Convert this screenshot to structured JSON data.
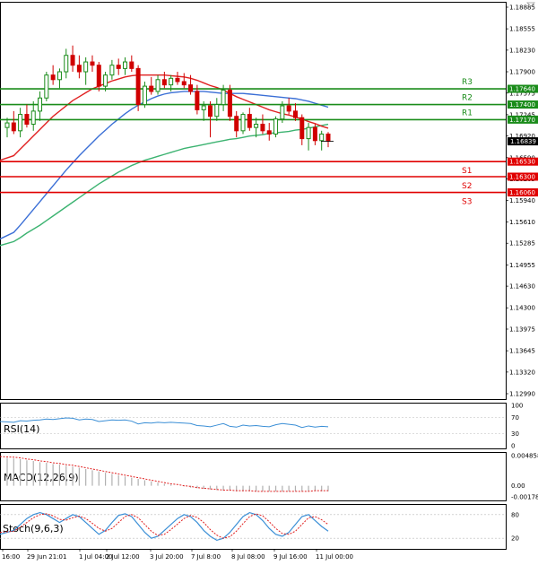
{
  "chart_data": {
    "type": "candlestick",
    "x_labels": [
      "16:00",
      "29 Jun 21:01",
      "1 Jul 04:00",
      "2 Jul 12:00",
      "3 Jul 20:00",
      "7 Jul 8:00",
      "8 Jul 08:00",
      "9 Jul 16:00",
      "11 Jul 00:00"
    ],
    "price_ticks": [
      "1.18885",
      "1.18555",
      "1.18230",
      "1.17900",
      "1.17575",
      "1.17245",
      "1.16920",
      "1.16590",
      "1.16265",
      "1.15940",
      "1.15610",
      "1.15285",
      "1.14955",
      "1.14630",
      "1.14300",
      "1.13975",
      "1.13645",
      "1.13320",
      "1.12990"
    ],
    "ylim": [
      1.1299,
      1.18885
    ],
    "current_price": "1.16839",
    "levels": [
      {
        "name": "R3",
        "value": 1.1764,
        "label": "1.17640",
        "color": "#1a8c1a"
      },
      {
        "name": "R2",
        "value": 1.174,
        "label": "1.17400",
        "color": "#1a8c1a"
      },
      {
        "name": "R1",
        "value": 1.1717,
        "label": "1.17170",
        "color": "#1a8c1a"
      },
      {
        "name": "S1",
        "value": 1.1653,
        "label": "1.16530",
        "color": "#e00000"
      },
      {
        "name": "S2",
        "value": 1.163,
        "label": "1.16300",
        "color": "#e00000"
      },
      {
        "name": "S3",
        "value": 1.1606,
        "label": "1.16060",
        "color": "#e00000"
      }
    ],
    "candles": [
      [
        1.1705,
        1.172,
        1.169,
        1.1712
      ],
      [
        1.1712,
        1.173,
        1.1695,
        1.17
      ],
      [
        1.17,
        1.1735,
        1.169,
        1.1725
      ],
      [
        1.1725,
        1.174,
        1.1705,
        1.171
      ],
      [
        1.171,
        1.1745,
        1.17,
        1.173
      ],
      [
        1.173,
        1.176,
        1.1715,
        1.175
      ],
      [
        1.175,
        1.179,
        1.1745,
        1.1785
      ],
      [
        1.1785,
        1.18,
        1.177,
        1.1778
      ],
      [
        1.1778,
        1.1795,
        1.1765,
        1.179
      ],
      [
        1.179,
        1.1825,
        1.178,
        1.1815
      ],
      [
        1.1815,
        1.183,
        1.179,
        1.18
      ],
      [
        1.18,
        1.1815,
        1.178,
        1.179
      ],
      [
        1.179,
        1.1812,
        1.177,
        1.1805
      ],
      [
        1.1805,
        1.1815,
        1.179,
        1.18
      ],
      [
        1.18,
        1.1805,
        1.176,
        1.1768
      ],
      [
        1.1768,
        1.179,
        1.176,
        1.1785
      ],
      [
        1.1785,
        1.1808,
        1.1778,
        1.18
      ],
      [
        1.18,
        1.181,
        1.1785,
        1.1795
      ],
      [
        1.1795,
        1.1812,
        1.1785,
        1.1805
      ],
      [
        1.1805,
        1.1815,
        1.179,
        1.1795
      ],
      [
        1.1795,
        1.18,
        1.173,
        1.174
      ],
      [
        1.174,
        1.1775,
        1.1735,
        1.1768
      ],
      [
        1.1768,
        1.1782,
        1.1755,
        1.176
      ],
      [
        1.176,
        1.1785,
        1.1755,
        1.1778
      ],
      [
        1.1778,
        1.179,
        1.1765,
        1.177
      ],
      [
        1.177,
        1.1785,
        1.176,
        1.178
      ],
      [
        1.178,
        1.179,
        1.177,
        1.1775
      ],
      [
        1.1775,
        1.1788,
        1.1765,
        1.177
      ],
      [
        1.177,
        1.1785,
        1.1755,
        1.176
      ],
      [
        1.176,
        1.177,
        1.1725,
        1.1732
      ],
      [
        1.1732,
        1.1745,
        1.1715,
        1.1738
      ],
      [
        1.1738,
        1.1745,
        1.169,
        1.1722
      ],
      [
        1.1722,
        1.175,
        1.1715,
        1.174
      ],
      [
        1.174,
        1.177,
        1.173,
        1.1762
      ],
      [
        1.1762,
        1.177,
        1.1715,
        1.1722
      ],
      [
        1.1722,
        1.173,
        1.169,
        1.17
      ],
      [
        1.17,
        1.1728,
        1.1695,
        1.1725
      ],
      [
        1.1725,
        1.1735,
        1.17,
        1.1705
      ],
      [
        1.1705,
        1.172,
        1.169,
        1.171
      ],
      [
        1.171,
        1.1725,
        1.1695,
        1.17
      ],
      [
        1.17,
        1.1712,
        1.1685,
        1.1695
      ],
      [
        1.1695,
        1.1722,
        1.169,
        1.1718
      ],
      [
        1.1718,
        1.1745,
        1.1712,
        1.1738
      ],
      [
        1.1738,
        1.175,
        1.1725,
        1.173
      ],
      [
        1.173,
        1.1742,
        1.1715,
        1.172
      ],
      [
        1.172,
        1.1725,
        1.1678,
        1.1688
      ],
      [
        1.1688,
        1.1712,
        1.167,
        1.1705
      ],
      [
        1.1705,
        1.171,
        1.1678,
        1.1685
      ],
      [
        1.1685,
        1.17,
        1.167,
        1.1695
      ],
      [
        1.1695,
        1.1698,
        1.1675,
        1.1684
      ]
    ],
    "ma_red": [
      1.1655,
      1.1662,
      1.1672,
      1.1682,
      1.1692,
      1.1702,
      1.1712,
      1.1722,
      1.173,
      1.1738,
      1.1746,
      1.1752,
      1.1758,
      1.1764,
      1.1768,
      1.1772,
      1.1776,
      1.1779,
      1.1782,
      1.1784,
      1.1785,
      1.1785,
      1.1785,
      1.1785,
      1.1785,
      1.1784,
      1.1783,
      1.1782,
      1.178,
      1.1777,
      1.1773,
      1.1769,
      1.1766,
      1.1762,
      1.1757,
      1.1752,
      1.1748,
      1.1744,
      1.174,
      1.1736,
      1.1732,
      1.1729,
      1.1726,
      1.1724,
      1.1721,
      1.1718,
      1.1714,
      1.1711,
      1.1707,
      1.1704
    ],
    "ma_blue": [
      1.1535,
      1.1545,
      1.1556,
      1.1568,
      1.158,
      1.1592,
      1.1604,
      1.1616,
      1.1628,
      1.164,
      1.1651,
      1.1662,
      1.1672,
      1.1682,
      1.1692,
      1.1701,
      1.171,
      1.1718,
      1.1726,
      1.1733,
      1.1739,
      1.1744,
      1.1749,
      1.1753,
      1.1756,
      1.1758,
      1.1759,
      1.176,
      1.176,
      1.176,
      1.176,
      1.1759,
      1.1758,
      1.1757,
      1.1757,
      1.1757,
      1.1757,
      1.1756,
      1.1755,
      1.1754,
      1.1753,
      1.1752,
      1.1751,
      1.175,
      1.1749,
      1.1747,
      1.1745,
      1.1742,
      1.1739,
      1.1736
    ],
    "ma_green": [
      1.1525,
      1.1531,
      1.1537,
      1.1544,
      1.155,
      1.1556,
      1.1563,
      1.157,
      1.1577,
      1.1584,
      1.1591,
      1.1598,
      1.1605,
      1.1612,
      1.1619,
      1.1625,
      1.1631,
      1.1637,
      1.1642,
      1.1647,
      1.1651,
      1.1655,
      1.1658,
      1.1661,
      1.1664,
      1.1667,
      1.167,
      1.1673,
      1.1675,
      1.1677,
      1.1679,
      1.1681,
      1.1683,
      1.1685,
      1.1687,
      1.1688,
      1.169,
      1.1692,
      1.1693,
      1.1694,
      1.1696,
      1.1697,
      1.1698,
      1.1699,
      1.1701,
      1.1702,
      1.1704,
      1.1706,
      1.1708,
      1.171
    ],
    "rsi": {
      "name": "RSI(14)",
      "ticks": [
        "100",
        "70",
        "30",
        "0"
      ],
      "values": [
        60,
        58,
        62,
        61,
        63,
        64,
        66,
        65,
        67,
        69,
        68,
        64,
        66,
        65,
        60,
        62,
        64,
        63,
        64,
        61,
        54,
        57,
        56,
        58,
        57,
        58,
        57,
        56,
        55,
        50,
        49,
        47,
        51,
        55,
        48,
        46,
        51,
        49,
        50,
        48,
        47,
        52,
        55,
        53,
        51,
        45,
        49,
        46,
        48,
        47
      ]
    },
    "macd": {
      "name": "MACD(12,26,9)",
      "ticks": [
        "0.004858",
        "0.00",
        "-0.001788"
      ],
      "hist": [
        0.0045,
        0.0044,
        0.0043,
        0.0041,
        0.004,
        0.0038,
        0.0037,
        0.0035,
        0.0034,
        0.0032,
        0.0031,
        0.0029,
        0.0027,
        0.0025,
        0.0023,
        0.0021,
        0.0019,
        0.0017,
        0.0015,
        0.0013,
        0.0011,
        0.0009,
        0.0007,
        0.0005,
        0.0003,
        0.0002,
        0.0,
        -0.0001,
        -0.0003,
        -0.0004,
        -0.0005,
        -0.0006,
        -0.0007,
        -0.0008,
        -0.0008,
        -0.0009,
        -0.0009,
        -0.0009,
        -0.0009,
        -0.0009,
        -0.0009,
        -0.0009,
        -0.0009,
        -0.0009,
        -0.0009,
        -0.0009,
        -0.0009,
        -0.0009,
        -0.0009,
        -0.0009
      ],
      "signal": [
        0.0047,
        0.0046,
        0.0045,
        0.0043,
        0.0042,
        0.004,
        0.0039,
        0.0037,
        0.0036,
        0.0034,
        0.0033,
        0.0031,
        0.0029,
        0.0027,
        0.0025,
        0.0023,
        0.0021,
        0.0019,
        0.0017,
        0.0015,
        0.0013,
        0.0011,
        0.0009,
        0.0007,
        0.0005,
        0.0003,
        0.0002,
        0.0,
        -0.0001,
        -0.0003,
        -0.0004,
        -0.0005,
        -0.0006,
        -0.0007,
        -0.0007,
        -0.0008,
        -0.0008,
        -0.0008,
        -0.0009,
        -0.0009,
        -0.0009,
        -0.0009,
        -0.0009,
        -0.0009,
        -0.0009,
        -0.0009,
        -0.0009,
        -0.0008,
        -0.0008,
        -0.0008
      ]
    },
    "stoch": {
      "name": "Stoch(9,6,3)",
      "ticks": [
        "80",
        "20"
      ],
      "k": [
        30,
        40,
        55,
        70,
        80,
        85,
        80,
        70,
        60,
        70,
        80,
        75,
        60,
        45,
        30,
        40,
        60,
        78,
        82,
        75,
        55,
        35,
        20,
        25,
        40,
        55,
        70,
        80,
        75,
        60,
        40,
        25,
        15,
        20,
        35,
        55,
        75,
        85,
        80,
        65,
        45,
        30,
        25,
        35,
        55,
        75,
        80,
        65,
        50,
        38
      ],
      "d": [
        35,
        38,
        48,
        60,
        72,
        80,
        82,
        77,
        68,
        66,
        72,
        76,
        70,
        58,
        45,
        38,
        45,
        60,
        75,
        80,
        72,
        55,
        38,
        27,
        30,
        42,
        56,
        70,
        78,
        73,
        60,
        42,
        28,
        20,
        24,
        38,
        57,
        75,
        82,
        77,
        62,
        45,
        32,
        30,
        38,
        55,
        72,
        75,
        67,
        55
      ]
    }
  }
}
